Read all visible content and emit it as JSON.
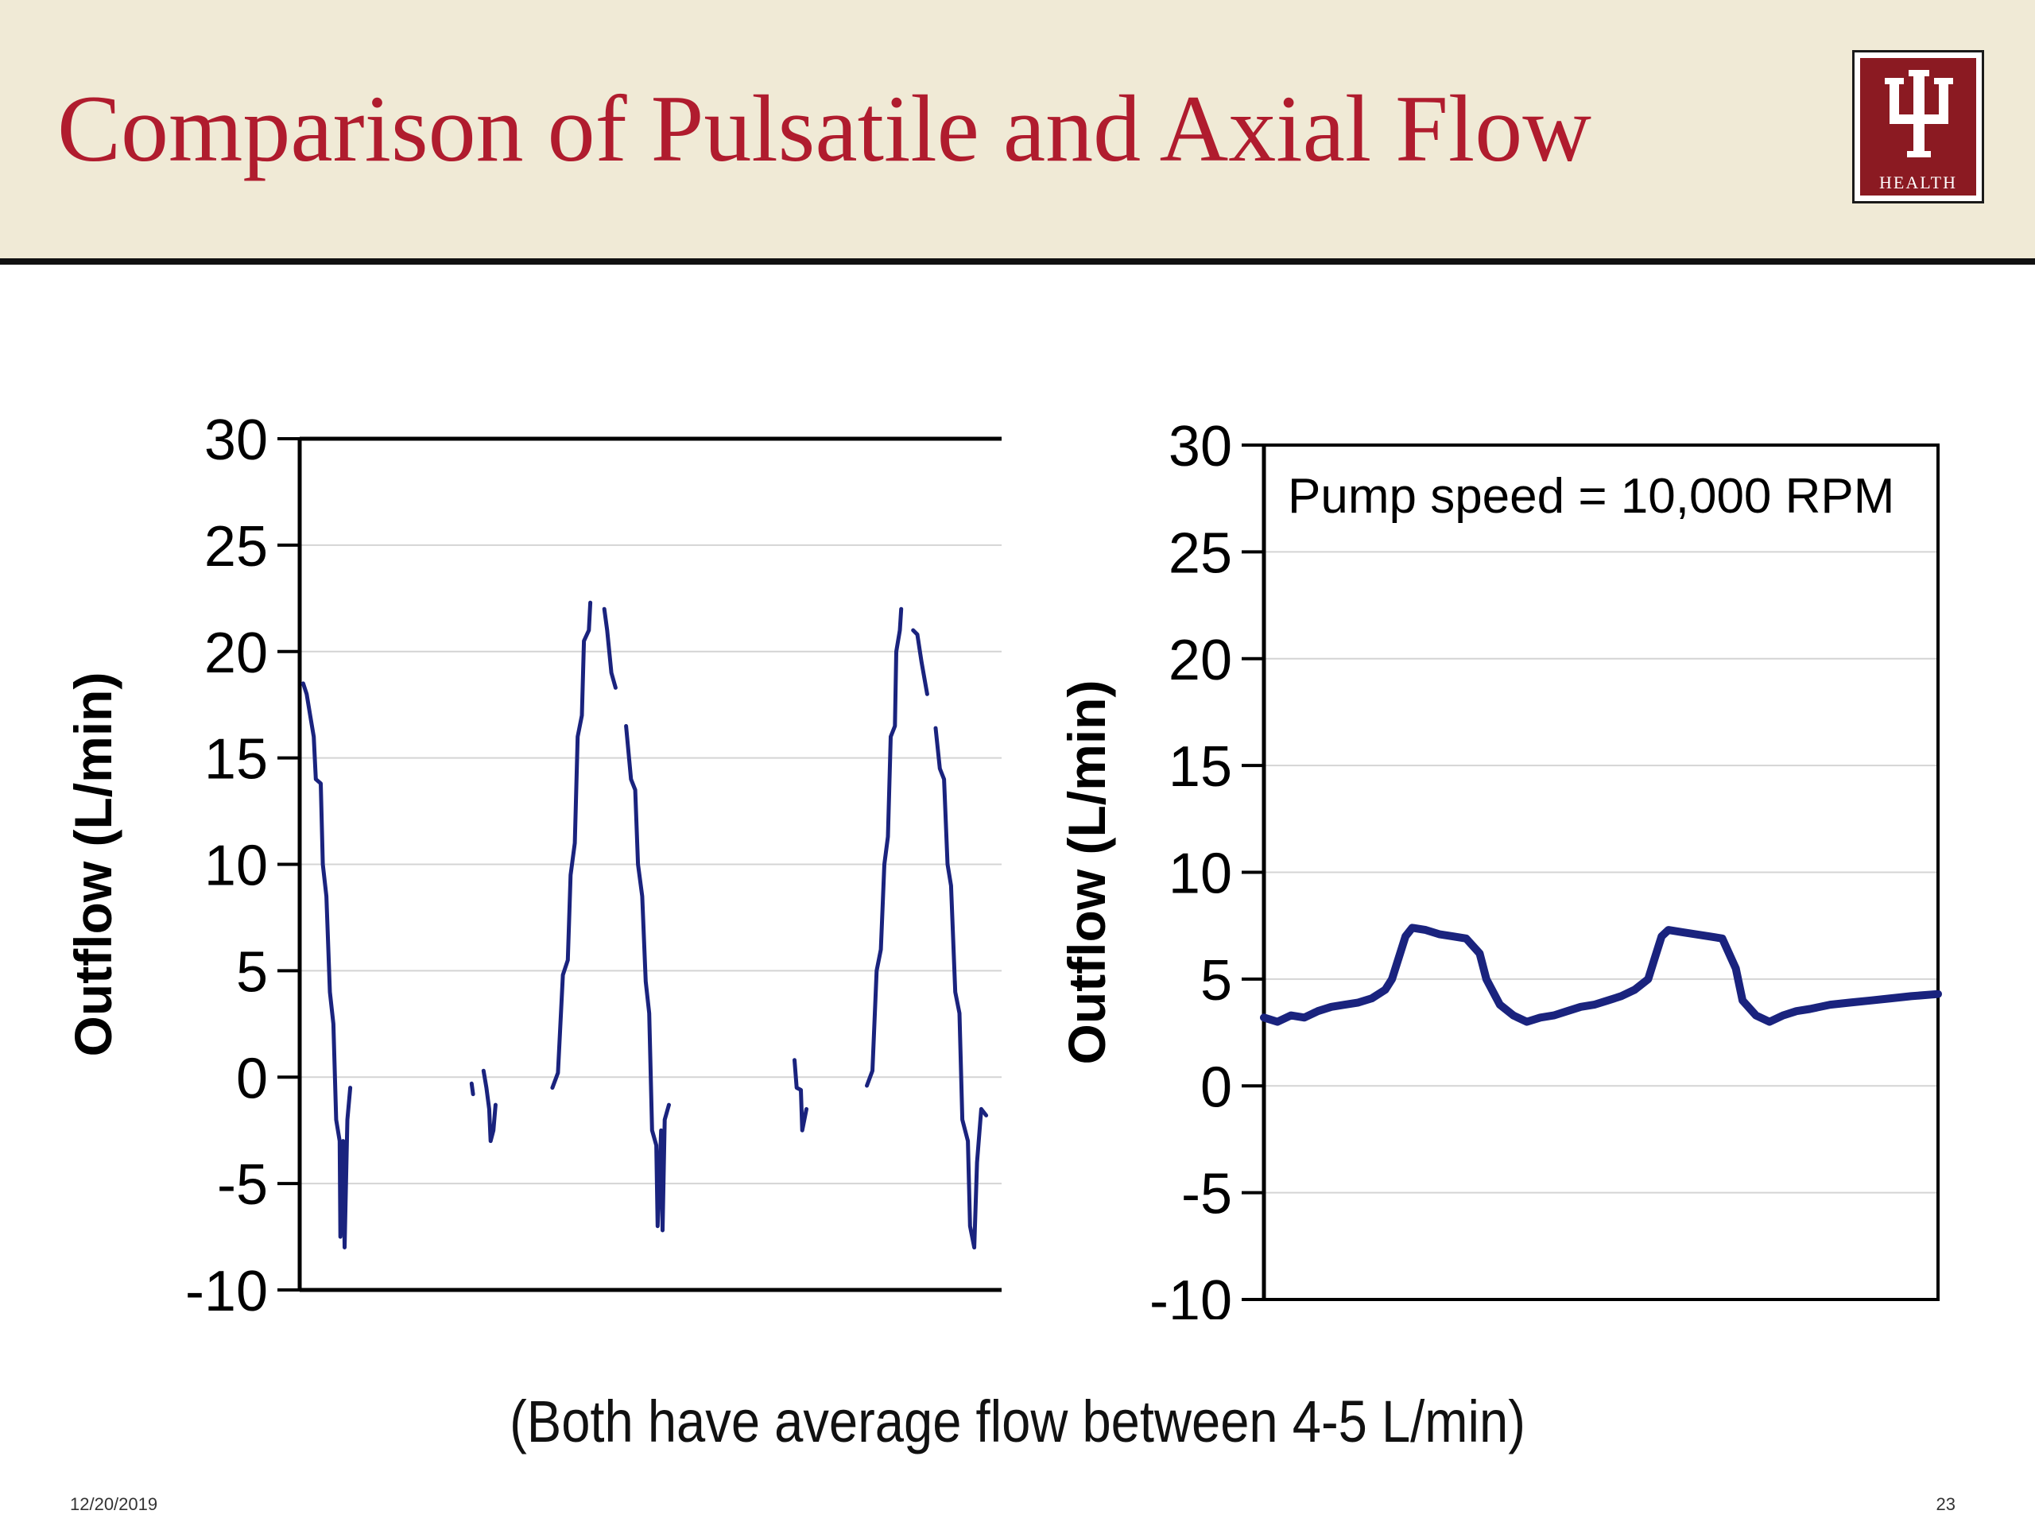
{
  "slide": {
    "title": "Comparison of Pulsatile and Axial Flow",
    "caption": "(Both have average flow between 4-5 L/min)",
    "date": "12/20/2019",
    "page_number": "23",
    "logo": {
      "text": "HEALTH",
      "icon": "iu-trident-logo"
    }
  },
  "colors": {
    "title": "#b01c2e",
    "header_background": "#f0ead6",
    "series": "#1a237e",
    "logo_background": "#8b1a22"
  },
  "chart_data": [
    {
      "type": "line",
      "ylabel": "Outflow (L/min)",
      "ylim": [
        -10,
        30
      ],
      "yticks": [
        30,
        25,
        20,
        15,
        10,
        5,
        0,
        -5,
        -10
      ],
      "xlim": [
        0,
        100
      ],
      "grid": true,
      "series": [
        {
          "segments": [
            [
              [
                0.5,
                18.5
              ],
              [
                1,
                18
              ],
              [
                1.5,
                17
              ],
              [
                2,
                16
              ],
              [
                2.3,
                14
              ],
              [
                3,
                13.8
              ],
              [
                3.3,
                10
              ],
              [
                3.8,
                8.5
              ],
              [
                4.3,
                4
              ],
              [
                4.8,
                2.5
              ],
              [
                5.2,
                -2
              ],
              [
                5.7,
                -3
              ],
              [
                5.8,
                -7.5
              ],
              [
                6.2,
                -3
              ],
              [
                6.4,
                -8
              ],
              [
                6.8,
                -2
              ],
              [
                7.2,
                -0.5
              ]
            ],
            [
              [
                24.5,
                -0.3
              ],
              [
                24.7,
                -0.8
              ]
            ],
            [
              [
                26.2,
                0.3
              ],
              [
                26.6,
                -0.5
              ],
              [
                27,
                -1.5
              ],
              [
                27.2,
                -3
              ],
              [
                27.6,
                -2.5
              ],
              [
                27.9,
                -1.3
              ]
            ],
            [
              [
                36,
                -0.5
              ],
              [
                36.8,
                0.2
              ],
              [
                37.5,
                4.8
              ],
              [
                38.2,
                5.5
              ],
              [
                38.6,
                9.5
              ],
              [
                39.2,
                11
              ],
              [
                39.6,
                16
              ],
              [
                40.2,
                17
              ],
              [
                40.5,
                20.5
              ],
              [
                41.2,
                21
              ],
              [
                41.4,
                22.3
              ]
            ],
            [
              [
                43.4,
                22
              ],
              [
                43.8,
                21
              ],
              [
                44.4,
                19
              ],
              [
                45,
                18.3
              ]
            ],
            [
              [
                46.5,
                16.5
              ],
              [
                47.2,
                14
              ],
              [
                47.8,
                13.5
              ],
              [
                48.2,
                10
              ],
              [
                48.8,
                8.5
              ],
              [
                49.3,
                4.5
              ],
              [
                49.8,
                3
              ],
              [
                50.2,
                -2.5
              ],
              [
                50.8,
                -3.2
              ],
              [
                51,
                -7
              ],
              [
                51.5,
                -2.5
              ],
              [
                51.7,
                -7.2
              ],
              [
                52,
                -2
              ],
              [
                52.6,
                -1.3
              ]
            ],
            [
              [
                70.5,
                0.8
              ],
              [
                70.8,
                -0.5
              ],
              [
                71.4,
                -0.6
              ],
              [
                71.6,
                -2.5
              ],
              [
                72.2,
                -1.5
              ]
            ],
            [
              [
                80.8,
                -0.4
              ],
              [
                81.6,
                0.3
              ],
              [
                82.2,
                5
              ],
              [
                82.8,
                6
              ],
              [
                83.3,
                10
              ],
              [
                83.8,
                11.3
              ],
              [
                84.2,
                16
              ],
              [
                84.8,
                16.5
              ],
              [
                85,
                20
              ],
              [
                85.5,
                21
              ],
              [
                85.7,
                22
              ]
            ],
            [
              [
                87.4,
                21
              ],
              [
                88,
                20.8
              ],
              [
                88.6,
                19.5
              ],
              [
                89.4,
                18
              ]
            ],
            [
              [
                90.6,
                16.4
              ],
              [
                91.2,
                14.5
              ],
              [
                91.8,
                14
              ],
              [
                92.3,
                10
              ],
              [
                92.8,
                9
              ],
              [
                93.4,
                4
              ],
              [
                94,
                3
              ],
              [
                94.4,
                -2
              ],
              [
                95.2,
                -3
              ],
              [
                95.5,
                -7
              ],
              [
                96.1,
                -8
              ],
              [
                96.5,
                -4
              ],
              [
                97.1,
                -1.5
              ],
              [
                97.8,
                -1.8
              ]
            ]
          ]
        }
      ]
    },
    {
      "type": "line",
      "ylabel": "Outflow (L/min)",
      "annotation": "Pump speed = 10,000 RPM",
      "ylim": [
        -10,
        30
      ],
      "yticks": [
        30,
        25,
        20,
        15,
        10,
        5,
        0,
        -5,
        -10
      ],
      "xlim": [
        0,
        100
      ],
      "grid": true,
      "series": [
        {
          "points": [
            [
              0,
              3.2
            ],
            [
              2,
              3
            ],
            [
              4,
              3.3
            ],
            [
              6,
              3.2
            ],
            [
              8,
              3.5
            ],
            [
              10,
              3.7
            ],
            [
              12,
              3.8
            ],
            [
              14,
              3.9
            ],
            [
              16,
              4.1
            ],
            [
              18,
              4.5
            ],
            [
              19,
              5
            ],
            [
              20,
              6
            ],
            [
              21,
              7
            ],
            [
              22,
              7.4
            ],
            [
              24,
              7.3
            ],
            [
              26,
              7.1
            ],
            [
              28,
              7
            ],
            [
              30,
              6.9
            ],
            [
              32,
              6.2
            ],
            [
              33,
              5
            ],
            [
              35,
              3.8
            ],
            [
              37,
              3.3
            ],
            [
              39,
              3
            ],
            [
              41,
              3.2
            ],
            [
              43,
              3.3
            ],
            [
              45,
              3.5
            ],
            [
              47,
              3.7
            ],
            [
              49,
              3.8
            ],
            [
              51,
              4
            ],
            [
              53,
              4.2
            ],
            [
              55,
              4.5
            ],
            [
              57,
              5
            ],
            [
              58,
              6
            ],
            [
              59,
              7
            ],
            [
              60,
              7.3
            ],
            [
              62,
              7.2
            ],
            [
              64,
              7.1
            ],
            [
              66,
              7
            ],
            [
              68,
              6.9
            ],
            [
              70,
              5.5
            ],
            [
              71,
              4
            ],
            [
              73,
              3.3
            ],
            [
              75,
              3
            ],
            [
              77,
              3.3
            ],
            [
              79,
              3.5
            ],
            [
              81,
              3.6
            ],
            [
              84,
              3.8
            ],
            [
              87,
              3.9
            ],
            [
              90,
              4
            ],
            [
              93,
              4.1
            ],
            [
              96,
              4.2
            ],
            [
              100,
              4.3
            ]
          ]
        }
      ]
    }
  ]
}
